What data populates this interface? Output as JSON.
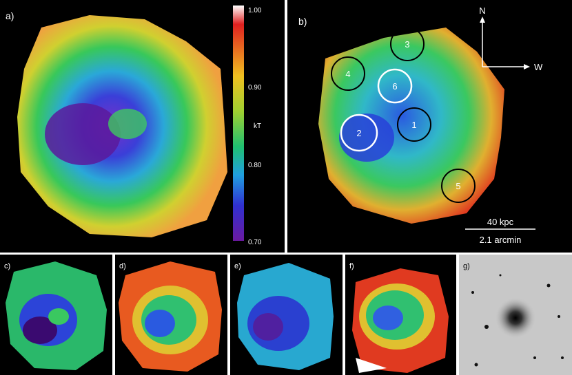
{
  "panel_labels": {
    "a": "a)",
    "b": "b)",
    "c": "c)",
    "d": "d)",
    "e": "e)",
    "f": "f)",
    "g": "g)"
  },
  "colorbar": {
    "label": "kT",
    "ticks": [
      "1.00",
      "0.90",
      "0.80",
      "0.70"
    ]
  },
  "regions": [
    {
      "id": "1",
      "ring": "black"
    },
    {
      "id": "2",
      "ring": "white"
    },
    {
      "id": "3",
      "ring": "black"
    },
    {
      "id": "4",
      "ring": "black"
    },
    {
      "id": "5",
      "ring": "black"
    },
    {
      "id": "6",
      "ring": "white"
    }
  ],
  "compass": {
    "north": "N",
    "west": "W"
  },
  "scalebar": {
    "top": "40 kpc",
    "bottom": "2.1 arcmin"
  },
  "colors": {
    "violet": "#5a1a9c",
    "blue": "#2f4fe0",
    "cyan": "#22aee0",
    "green": "#2ac85a",
    "yellow": "#d6d62a",
    "orange": "#f0a030",
    "red": "#e03a20"
  }
}
